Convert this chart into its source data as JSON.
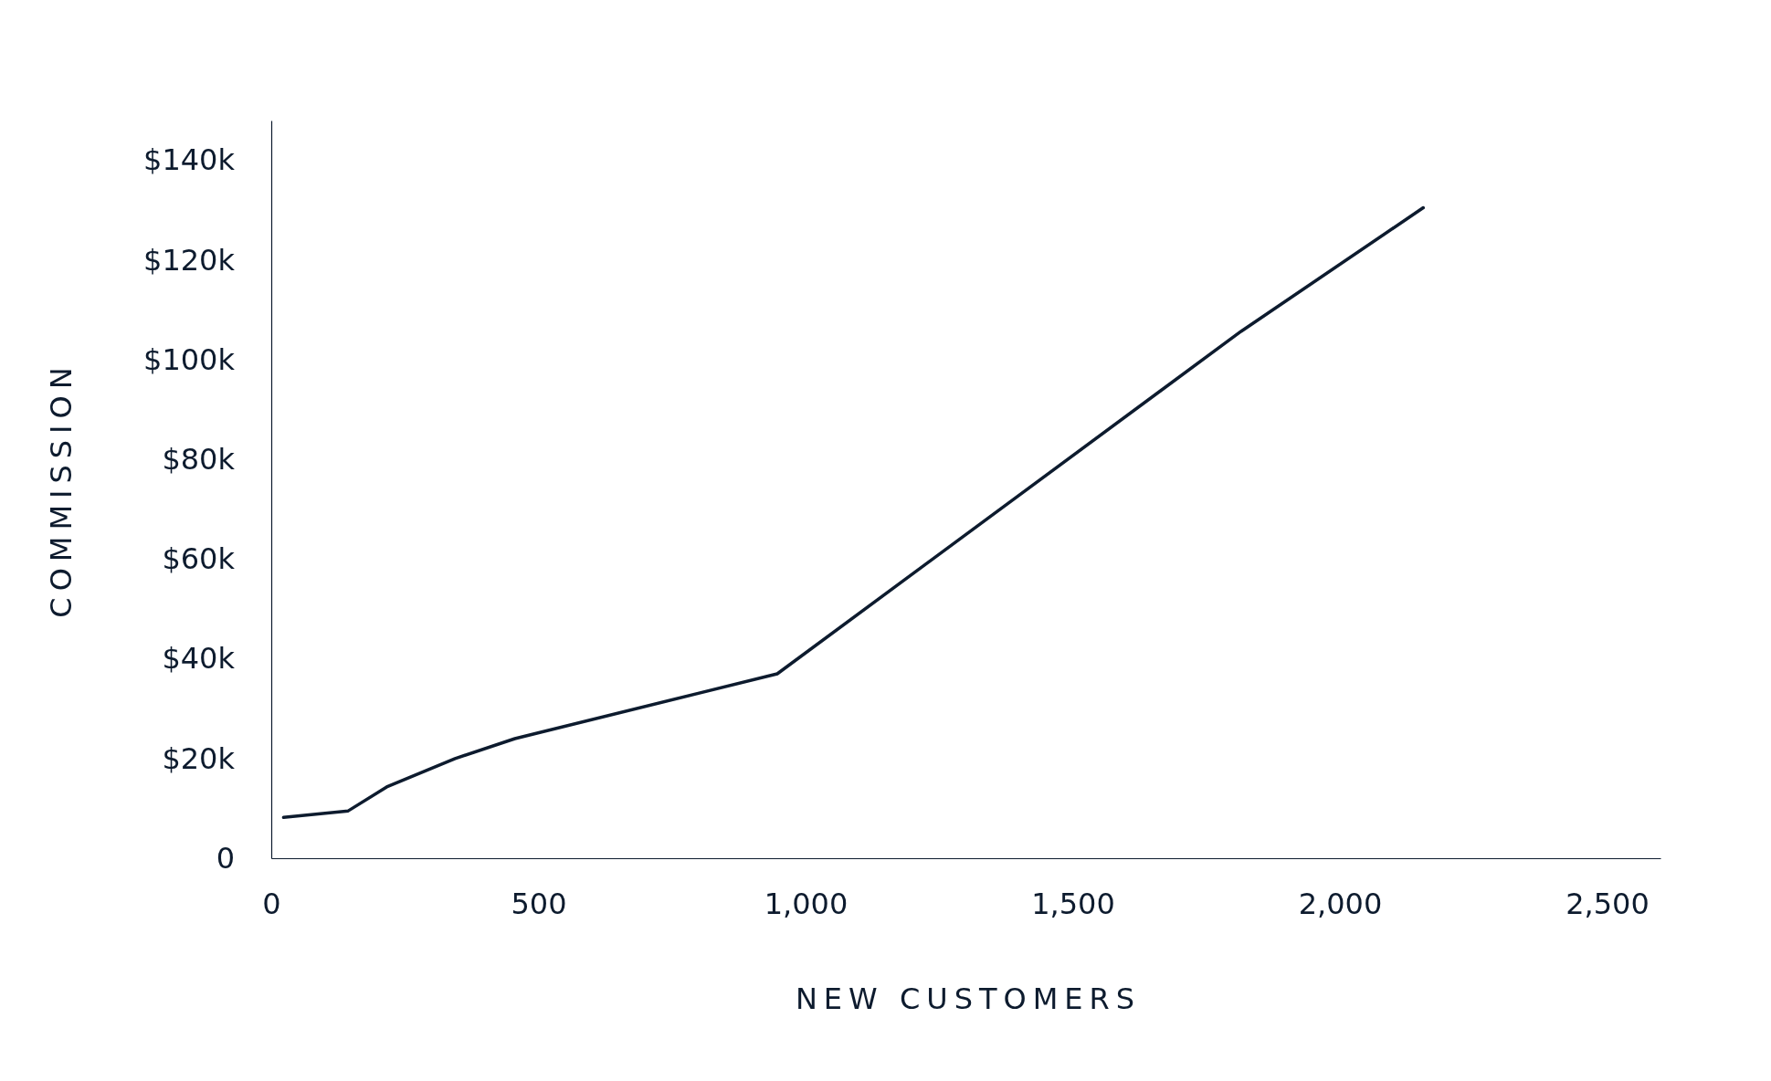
{
  "chart_data": {
    "type": "line",
    "xlabel": "NEW CUSTOMERS",
    "ylabel": "COMMISSION",
    "x": [
      23,
      144,
      216,
      344,
      456,
      947,
      1815,
      2156
    ],
    "series": [
      {
        "color": "#0d1b2e",
        "values": [
          8200,
          9500,
          14300,
          20000,
          24000,
          37000,
          105700,
          130500
        ]
      }
    ],
    "xlim": [
      0,
      2600
    ],
    "xticks": [
      0,
      {
        "value": 500,
        "label": "500"
      },
      {
        "value": 1000,
        "label": "1,000"
      },
      {
        "value": 1500,
        "label": "1,500"
      },
      {
        "value": 2000,
        "label": "2,000"
      },
      {
        "value": 2500,
        "label": "2,500"
      }
    ],
    "ylim": [
      0,
      148000
    ],
    "yticks": [
      0,
      {
        "value": 20000,
        "label": "$20k"
      },
      {
        "value": 40000,
        "label": "$40k"
      },
      {
        "value": 60000,
        "label": "$60k"
      },
      {
        "value": 80000,
        "label": "$80k"
      },
      {
        "value": 100000,
        "label": "$100k"
      },
      {
        "value": 120000,
        "label": "$120k"
      },
      {
        "value": 140000,
        "label": "$140k"
      }
    ],
    "grid": false,
    "marker": "none",
    "line_style": "solid"
  }
}
